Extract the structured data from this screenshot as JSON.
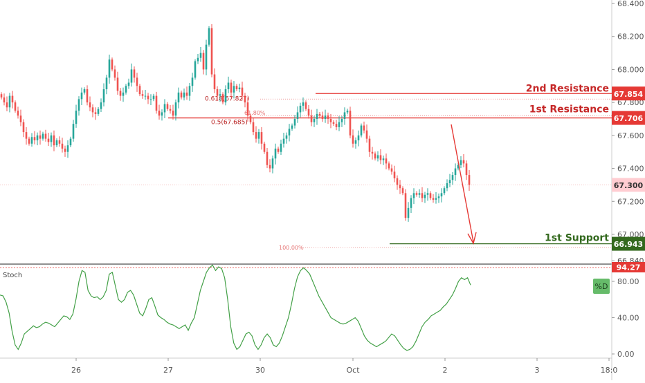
{
  "chart_data": [
    {
      "type": "candlestick",
      "title": "",
      "ylim": [
        66.8,
        68.42
      ],
      "y_ticks": [
        "68.400",
        "68.200",
        "68.000",
        "67.800",
        "67.600",
        "67.400",
        "67.200",
        "67.000",
        "66.840"
      ],
      "x_ticks": [
        "26",
        "27",
        "30",
        "Oct",
        "2",
        "3",
        "18:0"
      ],
      "current_price": {
        "label": "67.300",
        "value": 67.3
      },
      "price_series": [
        67.83,
        67.8,
        67.77,
        67.84,
        67.8,
        67.75,
        67.72,
        67.68,
        67.62,
        67.58,
        67.55,
        67.59,
        67.57,
        67.6,
        67.58,
        67.61,
        67.58,
        67.56,
        67.6,
        67.54,
        67.57,
        67.55,
        67.52,
        67.5,
        67.54,
        67.58,
        67.67,
        67.75,
        67.82,
        67.86,
        67.88,
        67.8,
        67.77,
        67.74,
        67.73,
        67.76,
        67.8,
        67.88,
        67.95,
        68.06,
        68.0,
        67.95,
        67.87,
        67.84,
        67.86,
        67.9,
        67.92,
        68.0,
        67.95,
        67.9,
        67.85,
        67.84,
        67.84,
        67.82,
        67.82,
        67.84,
        67.75,
        67.72,
        67.74,
        67.79,
        67.76,
        67.75,
        67.72,
        67.8,
        67.86,
        67.83,
        67.86,
        67.84,
        67.9,
        67.95,
        68.05,
        68.07,
        68.1,
        68.0,
        68.15,
        68.25,
        67.97,
        67.88,
        67.84,
        67.85,
        67.8,
        67.88,
        67.92,
        67.86,
        67.9,
        67.88,
        67.89,
        67.84,
        67.8,
        67.72,
        67.68,
        67.62,
        67.58,
        67.62,
        67.55,
        67.5,
        67.42,
        67.4,
        67.46,
        67.52,
        67.5,
        67.55,
        67.58,
        67.6,
        67.64,
        67.66,
        67.7,
        67.74,
        67.78,
        67.8,
        67.76,
        67.72,
        67.68,
        67.7,
        67.73,
        67.72,
        67.7,
        67.72,
        67.7,
        67.68,
        67.67,
        67.65,
        67.68,
        67.7,
        67.74,
        67.75,
        67.6,
        67.55,
        67.57,
        67.6,
        67.66,
        67.63,
        67.58,
        67.5,
        67.49,
        67.46,
        67.48,
        67.45,
        67.46,
        67.43,
        67.4,
        67.38,
        67.34,
        67.3,
        67.28,
        67.25,
        67.1,
        67.16,
        67.22,
        67.25,
        67.24,
        67.25,
        67.22,
        67.24,
        67.25,
        67.22,
        67.21,
        67.22,
        67.23,
        67.25,
        67.28,
        67.31,
        67.33,
        67.36,
        67.4,
        67.42,
        67.45,
        67.43,
        67.36,
        67.3
      ],
      "stochastic": {
        "name": "Stoch",
        "label": "%D",
        "ylim": [
          0,
          100
        ],
        "y_ticks": [
          "80.00",
          "40.00",
          "0.00"
        ],
        "overbought_value": 94.27,
        "overbought_label": "94.27",
        "d_values": [
          65,
          64,
          57,
          45,
          25,
          10,
          5,
          12,
          22,
          25,
          28,
          31,
          29,
          30,
          33,
          35,
          34,
          32,
          30,
          34,
          38,
          42,
          41,
          38,
          44,
          60,
          80,
          92,
          90,
          70,
          64,
          62,
          63,
          60,
          63,
          70,
          88,
          90,
          75,
          60,
          57,
          60,
          68,
          70,
          65,
          55,
          45,
          42,
          50,
          60,
          62,
          53,
          43,
          40,
          38,
          35,
          33,
          32,
          30,
          28,
          30,
          32,
          26,
          34,
          40,
          55,
          70,
          80,
          90,
          95,
          98,
          92,
          96,
          94,
          84,
          60,
          30,
          12,
          5,
          8,
          15,
          22,
          24,
          20,
          10,
          5,
          10,
          18,
          22,
          18,
          10,
          8,
          12,
          20,
          30,
          40,
          55,
          72,
          85,
          92,
          95,
          92,
          88,
          80,
          72,
          64,
          58,
          52,
          46,
          40,
          38,
          36,
          34,
          33,
          34,
          36,
          38,
          40,
          36,
          28,
          20,
          15,
          12,
          10,
          8,
          10,
          12,
          14,
          18,
          22,
          20,
          15,
          10,
          6,
          4,
          5,
          8,
          14,
          22,
          30,
          35,
          38,
          42,
          44,
          46,
          48,
          52,
          55,
          60,
          65,
          72,
          80,
          84,
          82,
          84,
          76
        ]
      },
      "annotations": {
        "resistance_1": {
          "label": "1st Resistance",
          "value_label": "67.706",
          "value": 67.706
        },
        "resistance_2": {
          "label": "2nd Resistance",
          "value_label": "67.854",
          "value": 67.854
        },
        "support_1": {
          "label": "1st Support",
          "value_label": "66.943",
          "value": 66.943
        },
        "fib_0618": {
          "label": "0.618(67.827)",
          "value": 67.827
        },
        "fib_05": {
          "label": "0.5(67.685)",
          "value": 67.685
        },
        "fib_618pct": {
          "label": "61.80%",
          "value": 67.72
        },
        "fib_100pct": {
          "label": "100.00%",
          "value": 66.92
        }
      },
      "colors": {
        "up": "#26a69a",
        "down": "#ef5350",
        "resistance": "#e53935",
        "support": "#33691e",
        "stoch_line": "#43a047",
        "axis_text": "#555555",
        "price_tag": "#ef5350"
      }
    }
  ]
}
